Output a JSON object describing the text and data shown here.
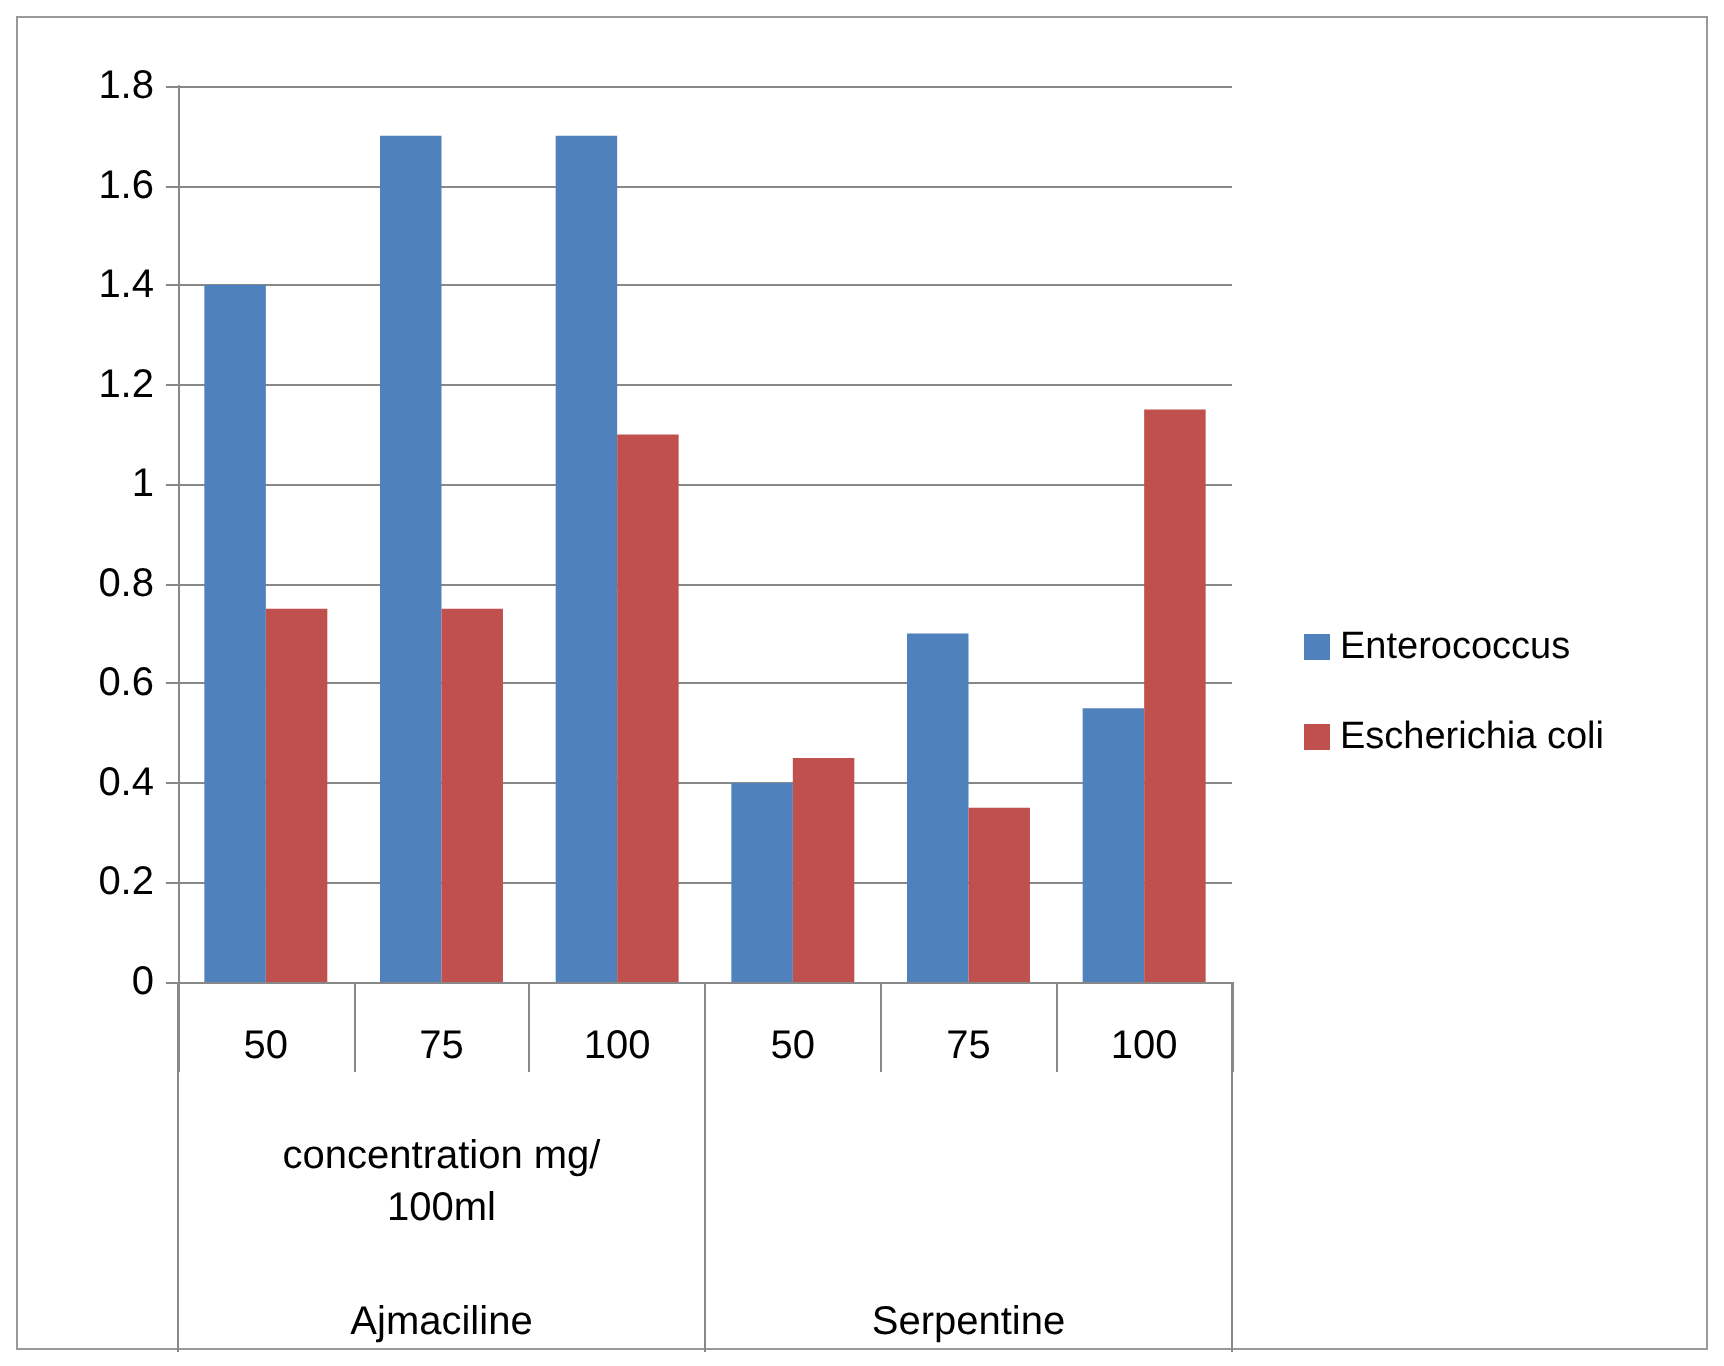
{
  "chart_data": {
    "type": "bar",
    "categories": [
      "50",
      "75",
      "100",
      "50",
      "75",
      "100"
    ],
    "series": [
      {
        "name": "Enterococcus",
        "color": "#4f81bd",
        "values": [
          1.4,
          1.7,
          1.7,
          0.4,
          0.7,
          0.55
        ]
      },
      {
        "name": "Escherichia coli",
        "color": "#c0504d",
        "values": [
          0.75,
          0.75,
          1.1,
          0.45,
          0.35,
          1.15
        ]
      }
    ],
    "xlabel": "concentration mg/100ml",
    "annotations": [
      "Ajmaciline",
      "Serpentine"
    ],
    "ylim": [
      0,
      1.8
    ],
    "yticks": [
      0,
      0.2,
      0.4,
      0.6,
      0.8,
      1,
      1.2,
      1.4,
      1.6,
      1.8
    ],
    "grid": "y",
    "legend": "right"
  }
}
